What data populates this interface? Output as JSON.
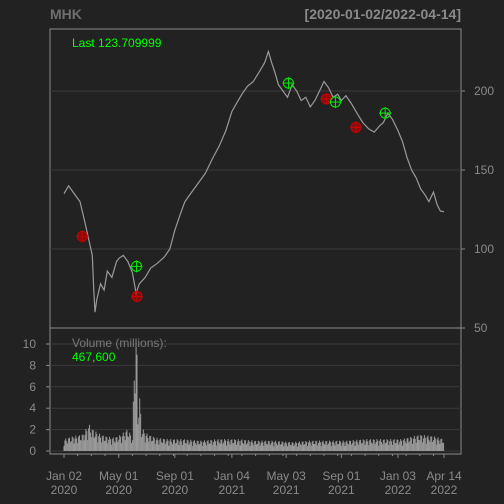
{
  "chart_data": {
    "type": "line",
    "title": "MHK",
    "date_range": "[2020-01-02/2022-04-14]",
    "last_label": "Last 123.709999",
    "volume_label": "Volume (millions):",
    "volume_value": "467,600",
    "x_ticks": [
      {
        "month": "Jan 02",
        "year": "2020",
        "d": 0
      },
      {
        "month": "May 01",
        "year": "2020",
        "d": 120
      },
      {
        "month": "Sep 01",
        "year": "2020",
        "d": 243
      },
      {
        "month": "Jan 04",
        "year": "2021",
        "d": 368
      },
      {
        "month": "May 03",
        "year": "2021",
        "d": 487
      },
      {
        "month": "Sep 01",
        "year": "2021",
        "d": 608
      },
      {
        "month": "Jan 03",
        "year": "2022",
        "d": 732
      },
      {
        "month": "Apr 14",
        "year": "2022",
        "d": 833
      }
    ],
    "x_range_days": [
      0,
      833
    ],
    "price_axis": {
      "ticks": [
        50,
        100,
        150,
        200
      ],
      "ylim": [
        50,
        230
      ]
    },
    "volume_axis": {
      "ticks": [
        0,
        2,
        4,
        6,
        8,
        10
      ],
      "ylim": [
        0,
        11
      ]
    },
    "price_series": [
      [
        0,
        135
      ],
      [
        10,
        140
      ],
      [
        20,
        136
      ],
      [
        35,
        130
      ],
      [
        45,
        118
      ],
      [
        55,
        105
      ],
      [
        62,
        96
      ],
      [
        65,
        75
      ],
      [
        68,
        60
      ],
      [
        72,
        68
      ],
      [
        80,
        78
      ],
      [
        88,
        74
      ],
      [
        95,
        86
      ],
      [
        105,
        82
      ],
      [
        115,
        92
      ],
      [
        120,
        94
      ],
      [
        130,
        96
      ],
      [
        140,
        92
      ],
      [
        150,
        85
      ],
      [
        158,
        72
      ],
      [
        165,
        78
      ],
      [
        178,
        82
      ],
      [
        190,
        88
      ],
      [
        205,
        91
      ],
      [
        220,
        95
      ],
      [
        232,
        100
      ],
      [
        243,
        112
      ],
      [
        255,
        122
      ],
      [
        265,
        130
      ],
      [
        280,
        136
      ],
      [
        295,
        142
      ],
      [
        310,
        148
      ],
      [
        325,
        157
      ],
      [
        340,
        165
      ],
      [
        355,
        175
      ],
      [
        368,
        187
      ],
      [
        378,
        192
      ],
      [
        390,
        198
      ],
      [
        402,
        203
      ],
      [
        415,
        206
      ],
      [
        428,
        212
      ],
      [
        440,
        218
      ],
      [
        448,
        225
      ],
      [
        455,
        218
      ],
      [
        462,
        212
      ],
      [
        470,
        204
      ],
      [
        480,
        200
      ],
      [
        490,
        196
      ],
      [
        500,
        204
      ],
      [
        510,
        200
      ],
      [
        520,
        194
      ],
      [
        530,
        196
      ],
      [
        540,
        190
      ],
      [
        550,
        194
      ],
      [
        560,
        200
      ],
      [
        570,
        206
      ],
      [
        580,
        202
      ],
      [
        590,
        196
      ],
      [
        600,
        198
      ],
      [
        608,
        194
      ],
      [
        618,
        197
      ],
      [
        630,
        192
      ],
      [
        642,
        186
      ],
      [
        655,
        180
      ],
      [
        668,
        176
      ],
      [
        680,
        174
      ],
      [
        692,
        178
      ],
      [
        700,
        180
      ],
      [
        710,
        186
      ],
      [
        720,
        182
      ],
      [
        732,
        175
      ],
      [
        742,
        168
      ],
      [
        752,
        158
      ],
      [
        762,
        150
      ],
      [
        772,
        145
      ],
      [
        782,
        138
      ],
      [
        792,
        134
      ],
      [
        800,
        130
      ],
      [
        810,
        136
      ],
      [
        818,
        128
      ],
      [
        825,
        124
      ],
      [
        833,
        123.7
      ]
    ],
    "markers": [
      {
        "d": 40,
        "price": 108,
        "color": "red"
      },
      {
        "d": 160,
        "price": 70,
        "color": "red"
      },
      {
        "d": 159,
        "price": 89,
        "color": "green"
      },
      {
        "d": 492,
        "price": 205,
        "color": "green"
      },
      {
        "d": 575,
        "price": 195,
        "color": "red"
      },
      {
        "d": 595,
        "price": 193,
        "color": "green"
      },
      {
        "d": 640,
        "price": 177,
        "color": "red"
      },
      {
        "d": 704,
        "price": 186,
        "color": "green"
      }
    ],
    "volume_series": [
      [
        0,
        0.8
      ],
      [
        20,
        1.0
      ],
      [
        40,
        1.1
      ],
      [
        55,
        1.8
      ],
      [
        62,
        1.5
      ],
      [
        75,
        1.2
      ],
      [
        90,
        1.0
      ],
      [
        110,
        0.9
      ],
      [
        125,
        1.1
      ],
      [
        140,
        1.5
      ],
      [
        150,
        0.9
      ],
      [
        158,
        10.5
      ],
      [
        162,
        2.5
      ],
      [
        165,
        4.2
      ],
      [
        170,
        1.6
      ],
      [
        180,
        1.2
      ],
      [
        200,
        0.9
      ],
      [
        230,
        0.8
      ],
      [
        260,
        0.8
      ],
      [
        300,
        0.7
      ],
      [
        340,
        0.8
      ],
      [
        380,
        0.8
      ],
      [
        420,
        0.7
      ],
      [
        460,
        0.7
      ],
      [
        500,
        0.6
      ],
      [
        540,
        0.7
      ],
      [
        580,
        0.7
      ],
      [
        620,
        0.7
      ],
      [
        660,
        0.8
      ],
      [
        700,
        0.8
      ],
      [
        740,
        0.8
      ],
      [
        780,
        1.1
      ],
      [
        810,
        1.0
      ],
      [
        833,
        0.8
      ]
    ]
  },
  "colors": {
    "background": "#222222",
    "grid": "#3a3a3a",
    "border": "#8a8a8a",
    "text": "#8a8a8a",
    "line": "#9a9a9a",
    "accent_green": "#00ff00",
    "marker_red": "#cc0000",
    "marker_green": "#00ee00"
  }
}
